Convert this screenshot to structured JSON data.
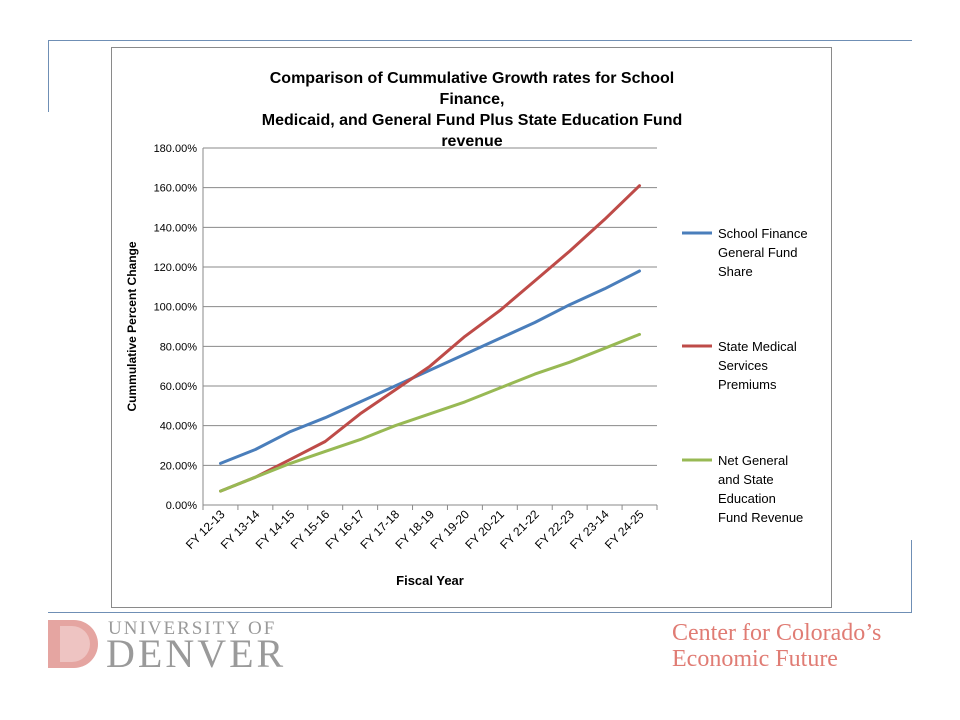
{
  "chart_data": {
    "type": "line",
    "title": "Comparison of Cummulative Growth rates for School Finance, Medicaid, and General Fund Plus State Education Fund revenue",
    "title_lines": [
      "Comparison of Cummulative Growth rates for School Finance,",
      "Medicaid, and General Fund Plus State Education Fund revenue"
    ],
    "xlabel": "Fiscal Year",
    "ylabel": "Cummulative Percent Change",
    "ylim": [
      0,
      180
    ],
    "yticks": [
      0,
      20,
      40,
      60,
      80,
      100,
      120,
      140,
      160,
      180
    ],
    "ytick_labels": [
      "0.00%",
      "20.00%",
      "40.00%",
      "60.00%",
      "80.00%",
      "100.00%",
      "120.00%",
      "140.00%",
      "160.00%",
      "180.00%"
    ],
    "categories": [
      "FY 12-13",
      "FY 13-14",
      "FY 14-15",
      "FY 15-16",
      "FY 16-17",
      "FY 17-18",
      "FY 18-19",
      "FY 19-20",
      "FY 20-21",
      "FY 21-22",
      "FY 22-23",
      "FY 23-14",
      "FY 24-25"
    ],
    "grid": true,
    "legend_position": "right",
    "series": [
      {
        "name": "School Finance General Fund Share",
        "legend_lines": [
          "School Finance",
          "General Fund",
          "Share"
        ],
        "color": "#4a7ebb",
        "values": [
          21,
          28,
          37,
          44,
          52,
          60,
          68,
          76,
          84,
          92,
          101,
          109,
          118
        ]
      },
      {
        "name": "State Medical Services Premiums",
        "legend_lines": [
          "State Medical",
          "Services",
          "Premiums"
        ],
        "color": "#be4b48",
        "values": [
          7,
          14,
          23,
          32,
          46,
          58,
          70,
          85,
          98,
          113,
          128,
          144,
          161
        ]
      },
      {
        "name": "Net General and State Education Fund Revenue",
        "legend_lines": [
          "Net General",
          "and State",
          "Education",
          "Fund Revenue"
        ],
        "color": "#98b954",
        "values": [
          7,
          14,
          21,
          27,
          33,
          40,
          46,
          52,
          59,
          66,
          72,
          79,
          86
        ]
      }
    ]
  },
  "footer": {
    "du_line1": "UNIVERSITY OF",
    "du_line2": "DENVER",
    "cce_line1": "Center for Colorado’s",
    "cce_line2": "Economic Future"
  },
  "colors": {
    "frame": "#6f8fb5",
    "grid": "#8a8a8a",
    "du_gray": "#9a9a9a",
    "du_logo_red": "#e5a5a1",
    "cce_red": "#e07c74"
  }
}
